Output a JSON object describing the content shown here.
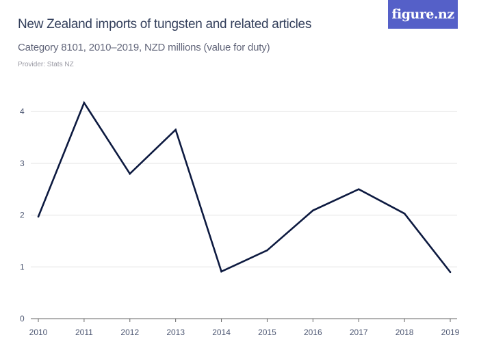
{
  "header": {
    "title": "New Zealand imports of tungsten and related articles",
    "subtitle": "Category 8101, 2010–2019, NZD millions (value for duty)",
    "provider": "Provider: Stats NZ",
    "logo_text": "figure.nz"
  },
  "colors": {
    "line": "#0d1a40",
    "logo_bg": "#5560c8",
    "grid": "#e2e2e2"
  },
  "chart_data": {
    "type": "line",
    "title": "New Zealand imports of tungsten and related articles",
    "subtitle": "Category 8101, 2010–2019, NZD millions (value for duty)",
    "xlabel": "",
    "ylabel": "",
    "x": [
      "2010",
      "2011",
      "2012",
      "2013",
      "2014",
      "2015",
      "2016",
      "2017",
      "2018",
      "2019"
    ],
    "series": [
      {
        "values": [
          1.97,
          4.17,
          2.8,
          3.65,
          0.91,
          1.32,
          2.09,
          2.5,
          2.03,
          0.9
        ]
      }
    ],
    "yticks": [
      "0",
      "1",
      "2",
      "3",
      "4"
    ],
    "ylim": [
      0,
      4.2
    ],
    "grid": true,
    "legend": "none"
  }
}
